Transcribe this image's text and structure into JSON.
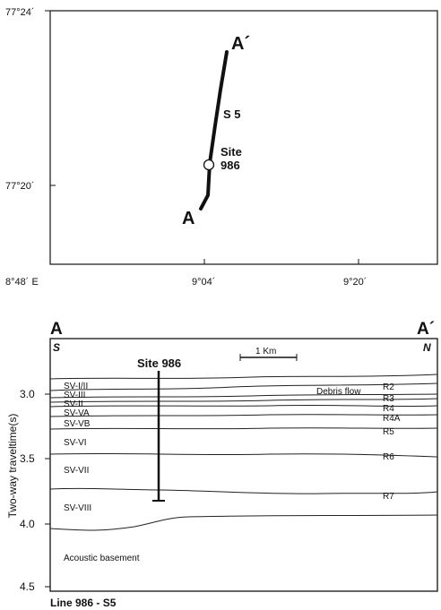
{
  "map": {
    "lat_labels": [
      "77°24´",
      "77°20´"
    ],
    "lon_labels": [
      "8°48´ E",
      "9°04´",
      "9°20´"
    ],
    "endpoint_start": "A",
    "endpoint_end": "A´",
    "line_label": "S 5",
    "site_label_line1": "Site",
    "site_label_line2": "986"
  },
  "profile": {
    "left_title": "A",
    "right_title": "A´",
    "left_dir": "S",
    "right_dir": "N",
    "scale_label": "1 Km",
    "site_label": "Site 986",
    "debris_label": "Debris flow",
    "y_axis_label": "Two-way traveltime(s)",
    "y_ticks": [
      "3.0",
      "3.5",
      "4.0",
      "4.5"
    ],
    "units": [
      "SV-I/II",
      "SV-III",
      "SV-II",
      "SV-VA",
      "SV-VB",
      "SV-VI",
      "SV-VII",
      "SV-VIII"
    ],
    "reflectors": [
      "R2",
      "R3",
      "R4",
      "R4A",
      "R5",
      "R6",
      "R7"
    ],
    "basement_label": "Acoustic basement",
    "caption": "Line  986 - S5"
  }
}
